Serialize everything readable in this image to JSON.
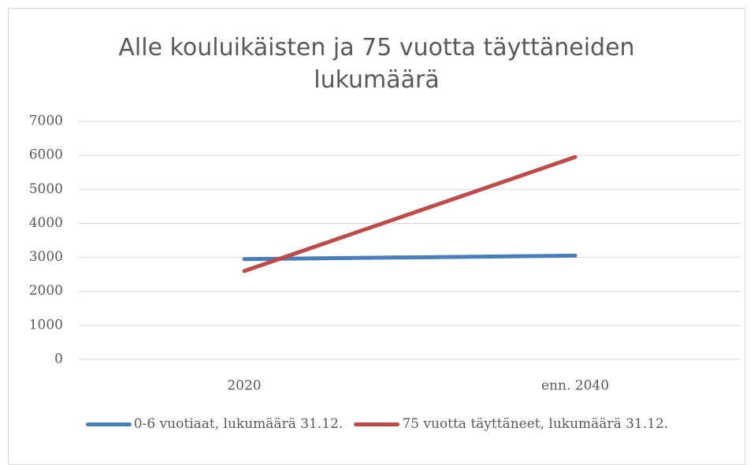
{
  "chart_data": {
    "type": "line",
    "title": "Alle kouluikäisten ja 75 vuotta täyttäneiden lukumäärä",
    "categories": [
      "2020",
      "enn. 2040"
    ],
    "series": [
      {
        "name": "0-6 vuotiaat, lukumäärä 31.12.",
        "color": "#4a7ebb",
        "values": [
          2950,
          3050
        ]
      },
      {
        "name": "75 vuotta täyttäneet, lukumäärä 31.12.",
        "color": "#be4b48",
        "values": [
          2600,
          5950
        ]
      }
    ],
    "ylim": [
      0,
      7000
    ],
    "yticks": [
      0,
      1000,
      2000,
      3000,
      4000,
      5000,
      6000,
      7000
    ],
    "grid": true,
    "legend": "bottom"
  }
}
